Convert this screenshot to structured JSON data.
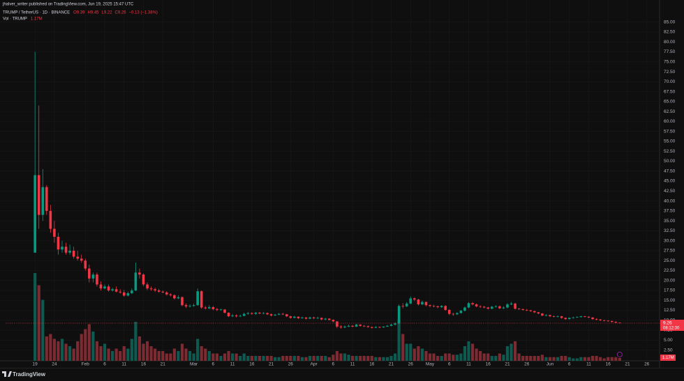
{
  "header": {
    "publisher": "jhalver_writer published on TradingView.com, Jun 19, 2025 15:47 UTC"
  },
  "chart_data": {
    "type": "candlestick",
    "symbol": "TRUMP / TetherUS · 1D · BINANCE",
    "ohlc_legend": [
      "O9.39",
      "H9.45",
      "L9.22",
      "C9.26",
      "−0.13 (−1.38%)"
    ],
    "countdown": "08:12:30",
    "up_color": "#089981",
    "down_color": "#f23645",
    "open": [
      27.0,
      46.5,
      36.5,
      43.5,
      37.5,
      33.0,
      31.0,
      27.8,
      28.5,
      27.0,
      27.5,
      26.0,
      25.5,
      25.0,
      23.0,
      20.5,
      21.5,
      19.0,
      18.0,
      18.5,
      17.5,
      17.8,
      17.2,
      17.0,
      16.2,
      16.8,
      17.5,
      22.0,
      21.5,
      19.0,
      18.0,
      17.8,
      17.5,
      17.2,
      17.0,
      16.5,
      16.3,
      15.5,
      15.8,
      13.8,
      13.5,
      13.6,
      13.8,
      17.3,
      13.2,
      13.0,
      13.3,
      12.8,
      12.6,
      12.7,
      11.9,
      11.0,
      11.2,
      11.0,
      11.1,
      11.6,
      11.8,
      11.6,
      11.9,
      11.7,
      11.8,
      11.5,
      11.2,
      11.4,
      11.6,
      11.5,
      11.0,
      10.6,
      10.9,
      10.5,
      10.7,
      10.4,
      10.7,
      10.5,
      10.6,
      10.2,
      10.4,
      10.1,
      9.7,
      8.4,
      8.2,
      8.4,
      8.6,
      8.4,
      8.9,
      8.6,
      8.5,
      8.3,
      8.1,
      8.3,
      8.2,
      8.4,
      8.6,
      8.9,
      9.2,
      13.6,
      13.5,
      14.2,
      15.5,
      15.2,
      14.0,
      14.6,
      13.8,
      13.6,
      13.5,
      13.3,
      13.6,
      12.6,
      11.6,
      11.5,
      11.8,
      12.4,
      13.2,
      14.3,
      14.0,
      13.5,
      13.4,
      13.2,
      12.9,
      13.4,
      13.5,
      13.0,
      13.2,
      14.0,
      14.2,
      12.9,
      12.8,
      12.6,
      12.5,
      12.3,
      12.0,
      11.7,
      11.2,
      11.3,
      11.0,
      10.9,
      11.0,
      10.6,
      10.3,
      10.6,
      10.7,
      10.8,
      11.0,
      10.9,
      10.7,
      10.3,
      10.2,
      10.0,
      9.9,
      9.8,
      9.6,
      9.39
    ],
    "high": [
      77.5,
      64.0,
      48.0,
      44.0,
      39.0,
      35.0,
      32.0,
      30.0,
      29.5,
      29.0,
      28.5,
      27.5,
      26.5,
      25.5,
      24.0,
      22.0,
      22.0,
      19.8,
      19.0,
      19.0,
      18.2,
      18.5,
      17.8,
      17.6,
      17.2,
      18.0,
      24.5,
      23.0,
      21.8,
      19.5,
      18.5,
      18.2,
      17.9,
      17.5,
      17.3,
      16.8,
      16.5,
      16.3,
      16.0,
      14.2,
      14.0,
      14.2,
      18.0,
      17.5,
      13.6,
      13.8,
      13.6,
      13.1,
      12.9,
      12.8,
      12.0,
      11.6,
      11.5,
      11.4,
      11.9,
      12.1,
      12.0,
      12.1,
      12.1,
      12.1,
      12.0,
      11.7,
      11.6,
      11.8,
      11.9,
      11.6,
      11.1,
      11.1,
      11.0,
      10.9,
      10.8,
      10.9,
      10.9,
      10.9,
      10.7,
      10.6,
      10.5,
      10.2,
      9.8,
      8.8,
      8.7,
      8.9,
      8.8,
      9.1,
      9.0,
      8.8,
      8.7,
      8.4,
      8.5,
      8.4,
      8.5,
      8.8,
      9.1,
      9.5,
      14.0,
      14.3,
      14.6,
      16.0,
      15.8,
      15.4,
      14.9,
      14.7,
      14.0,
      13.9,
      13.7,
      13.8,
      13.8,
      12.8,
      11.9,
      12.0,
      12.6,
      13.4,
      14.6,
      14.6,
      14.2,
      13.8,
      13.6,
      13.4,
      13.6,
      13.8,
      13.7,
      13.5,
      14.3,
      14.6,
      14.4,
      13.1,
      12.9,
      12.8,
      12.6,
      12.4,
      12.1,
      11.8,
      11.5,
      11.4,
      11.2,
      11.2,
      11.1,
      10.7,
      10.7,
      10.9,
      11.0,
      11.1,
      11.1,
      11.0,
      10.8,
      10.5,
      10.3,
      10.1,
      10.0,
      9.9,
      9.7,
      9.45
    ],
    "low": [
      27.0,
      33.0,
      35.0,
      36.5,
      32.0,
      29.5,
      26.5,
      27.0,
      26.5,
      26.5,
      25.5,
      25.0,
      24.5,
      22.5,
      19.5,
      19.5,
      18.5,
      17.5,
      17.8,
      17.2,
      17.2,
      17.0,
      16.7,
      15.9,
      16.0,
      16.6,
      17.3,
      20.5,
      18.6,
      17.6,
      17.4,
      17.1,
      16.9,
      16.8,
      16.2,
      16.0,
      15.2,
      15.3,
      13.5,
      13.1,
      13.2,
      13.4,
      13.6,
      12.9,
      12.7,
      12.8,
      12.5,
      12.3,
      12.4,
      11.7,
      10.8,
      10.8,
      10.7,
      10.8,
      11.0,
      11.4,
      11.4,
      11.4,
      11.5,
      11.5,
      11.3,
      11.0,
      11.1,
      11.3,
      11.3,
      10.8,
      10.4,
      10.5,
      10.3,
      10.4,
      10.2,
      10.3,
      10.3,
      10.3,
      10.0,
      10.0,
      9.9,
      9.5,
      8.0,
      7.9,
      8.0,
      8.3,
      8.2,
      8.3,
      8.4,
      8.3,
      8.1,
      7.9,
      8.0,
      8.0,
      8.1,
      8.3,
      8.5,
      8.7,
      9.1,
      13.0,
      13.3,
      14.0,
      14.8,
      13.7,
      13.8,
      13.5,
      13.3,
      13.2,
      13.0,
      13.1,
      12.4,
      11.3,
      11.1,
      11.3,
      11.7,
      12.2,
      13.0,
      13.7,
      13.3,
      13.1,
      13.0,
      12.7,
      12.8,
      13.2,
      12.8,
      12.8,
      13.0,
      13.8,
      12.7,
      12.6,
      12.4,
      12.3,
      12.1,
      11.8,
      11.5,
      11.0,
      11.0,
      10.8,
      10.7,
      10.7,
      10.4,
      10.1,
      10.2,
      10.4,
      10.6,
      10.7,
      10.7,
      10.5,
      10.1,
      10.0,
      9.8,
      9.7,
      9.6,
      9.4,
      9.3,
      9.22
    ],
    "close": [
      46.5,
      36.5,
      43.5,
      37.5,
      33.0,
      31.0,
      27.8,
      28.5,
      27.0,
      27.5,
      26.0,
      25.5,
      25.0,
      23.0,
      20.5,
      21.5,
      19.0,
      18.0,
      18.5,
      17.5,
      17.8,
      17.2,
      17.0,
      16.2,
      16.8,
      17.5,
      22.0,
      21.5,
      19.0,
      18.0,
      17.8,
      17.5,
      17.2,
      17.0,
      16.5,
      16.3,
      15.5,
      15.8,
      13.8,
      13.5,
      13.6,
      13.8,
      17.3,
      13.2,
      13.0,
      13.3,
      12.8,
      12.6,
      12.7,
      11.9,
      11.0,
      11.2,
      11.0,
      11.1,
      11.6,
      11.8,
      11.6,
      11.9,
      11.7,
      11.8,
      11.5,
      11.2,
      11.4,
      11.6,
      11.5,
      11.0,
      10.6,
      10.9,
      10.5,
      10.7,
      10.4,
      10.7,
      10.5,
      10.6,
      10.2,
      10.4,
      10.1,
      9.7,
      8.4,
      8.2,
      8.4,
      8.6,
      8.4,
      8.9,
      8.6,
      8.5,
      8.3,
      8.1,
      8.3,
      8.2,
      8.4,
      8.6,
      8.9,
      9.2,
      13.6,
      13.5,
      14.2,
      15.5,
      15.2,
      14.0,
      14.6,
      13.8,
      13.6,
      13.5,
      13.3,
      13.6,
      12.6,
      11.6,
      11.5,
      11.8,
      12.4,
      13.2,
      14.3,
      14.0,
      13.5,
      13.4,
      13.2,
      12.9,
      13.4,
      13.5,
      13.0,
      13.2,
      14.0,
      14.2,
      12.9,
      12.8,
      12.6,
      12.5,
      12.3,
      12.0,
      11.7,
      11.2,
      11.3,
      11.0,
      10.9,
      11.0,
      10.6,
      10.3,
      10.6,
      10.7,
      10.8,
      11.0,
      10.9,
      10.7,
      10.3,
      10.2,
      10.0,
      9.9,
      9.8,
      9.6,
      9.39,
      9.26
    ],
    "volume": {
      "name": "Vol · TRUMP",
      "last_label": "1.17M",
      "vlim": [
        0,
        40
      ],
      "up_color": "#0e5a50",
      "down_color": "#7b2b31",
      "values": [
        36,
        31,
        25,
        10,
        11,
        9,
        8,
        9,
        7,
        6,
        5,
        8,
        11,
        13,
        15,
        12,
        8,
        6,
        7,
        5,
        4,
        5,
        4,
        6,
        5,
        9,
        16,
        10,
        7,
        8,
        6,
        5,
        4,
        4,
        3,
        3,
        5,
        4,
        7,
        5,
        4,
        3,
        9,
        6,
        5,
        4,
        3,
        3,
        2,
        3,
        4,
        3,
        3,
        2,
        3,
        2,
        2,
        2,
        2,
        2,
        2,
        2,
        1.5,
        1.5,
        2,
        2,
        2,
        2,
        2,
        1.5,
        1.5,
        2,
        2,
        2,
        2,
        2,
        1.5,
        2.5,
        4,
        3,
        3,
        2.5,
        2,
        2,
        2,
        2,
        2,
        2,
        1.5,
        1.5,
        1.5,
        1.5,
        2,
        3,
        17,
        11,
        7,
        7,
        5,
        6,
        5,
        4,
        3,
        3,
        2,
        2,
        3,
        3,
        2.5,
        2.5,
        3,
        6,
        8,
        7,
        5,
        4,
        3,
        3,
        2,
        2,
        3,
        2.5,
        6,
        7,
        8,
        3,
        2,
        2,
        2,
        2,
        2,
        2.5,
        1.5,
        1.5,
        1.5,
        1.5,
        2,
        2,
        1.5,
        1,
        1,
        1.5,
        1.5,
        1.5,
        2,
        2,
        1.5,
        1,
        1.5,
        1.5,
        1.5,
        1.17
      ]
    },
    "xlim": [
      -7.6,
      161.3
    ],
    "xticks": [
      {
        "value": 0,
        "label": "19"
      },
      {
        "value": 5,
        "label": "24"
      },
      {
        "value": 13,
        "label": "Feb"
      },
      {
        "value": 18,
        "label": "6"
      },
      {
        "value": 23,
        "label": "11"
      },
      {
        "value": 28,
        "label": "16"
      },
      {
        "value": 33,
        "label": "21"
      },
      {
        "value": 41,
        "label": "Mar"
      },
      {
        "value": 46,
        "label": "6"
      },
      {
        "value": 51,
        "label": "11"
      },
      {
        "value": 56,
        "label": "16"
      },
      {
        "value": 61,
        "label": "21"
      },
      {
        "value": 66,
        "label": "26"
      },
      {
        "value": 72,
        "label": "Apr"
      },
      {
        "value": 77,
        "label": "6"
      },
      {
        "value": 82,
        "label": "11"
      },
      {
        "value": 87,
        "label": "16"
      },
      {
        "value": 92,
        "label": "21"
      },
      {
        "value": 97,
        "label": "26"
      },
      {
        "value": 102,
        "label": "May"
      },
      {
        "value": 107,
        "label": "6"
      },
      {
        "value": 112,
        "label": "11"
      },
      {
        "value": 117,
        "label": "16"
      },
      {
        "value": 122,
        "label": "21"
      },
      {
        "value": 127,
        "label": "26"
      },
      {
        "value": 133,
        "label": "Jun"
      },
      {
        "value": 138,
        "label": "6"
      },
      {
        "value": 143,
        "label": "11"
      },
      {
        "value": 148,
        "label": "16"
      },
      {
        "value": 153,
        "label": "21"
      },
      {
        "value": 158,
        "label": "26"
      }
    ],
    "ylim": [
      -0.2,
      88.8
    ],
    "yticks": [
      {
        "value": 2.5,
        "label": "2.50"
      },
      {
        "value": 5,
        "label": "5.00"
      },
      {
        "value": 7.5,
        "label": "7.50"
      },
      {
        "value": 10,
        "label": "10.00"
      },
      {
        "value": 12.5,
        "label": "12.50"
      },
      {
        "value": 15,
        "label": "15.00"
      },
      {
        "value": 17.5,
        "label": "17.50"
      },
      {
        "value": 20,
        "label": "20.00"
      },
      {
        "value": 22.5,
        "label": "22.50"
      },
      {
        "value": 25,
        "label": "25.00"
      },
      {
        "value": 27.5,
        "label": "27.50"
      },
      {
        "value": 30,
        "label": "30.00"
      },
      {
        "value": 32.5,
        "label": "32.50"
      },
      {
        "value": 35,
        "label": "35.00"
      },
      {
        "value": 37.5,
        "label": "37.50"
      },
      {
        "value": 40,
        "label": "40.00"
      },
      {
        "value": 42.5,
        "label": "42.50"
      },
      {
        "value": 45,
        "label": "45.00"
      },
      {
        "value": 47.5,
        "label": "47.50"
      },
      {
        "value": 50,
        "label": "50.00"
      },
      {
        "value": 52.5,
        "label": "52.50"
      },
      {
        "value": 55,
        "label": "55.00"
      },
      {
        "value": 57.5,
        "label": "57.50"
      },
      {
        "value": 60,
        "label": "60.00"
      },
      {
        "value": 62.5,
        "label": "62.50"
      },
      {
        "value": 65,
        "label": "65.00"
      },
      {
        "value": 67.5,
        "label": "67.50"
      },
      {
        "value": 70,
        "label": "70.00"
      },
      {
        "value": 72.5,
        "label": "72.50"
      },
      {
        "value": 75,
        "label": "75.00"
      },
      {
        "value": 77.5,
        "label": "77.50"
      },
      {
        "value": 80,
        "label": "80.00"
      },
      {
        "value": 82.5,
        "label": "82.50"
      },
      {
        "value": 85,
        "label": "85.00"
      }
    ],
    "grid": true
  },
  "footer": {
    "brand": "TradingView"
  }
}
